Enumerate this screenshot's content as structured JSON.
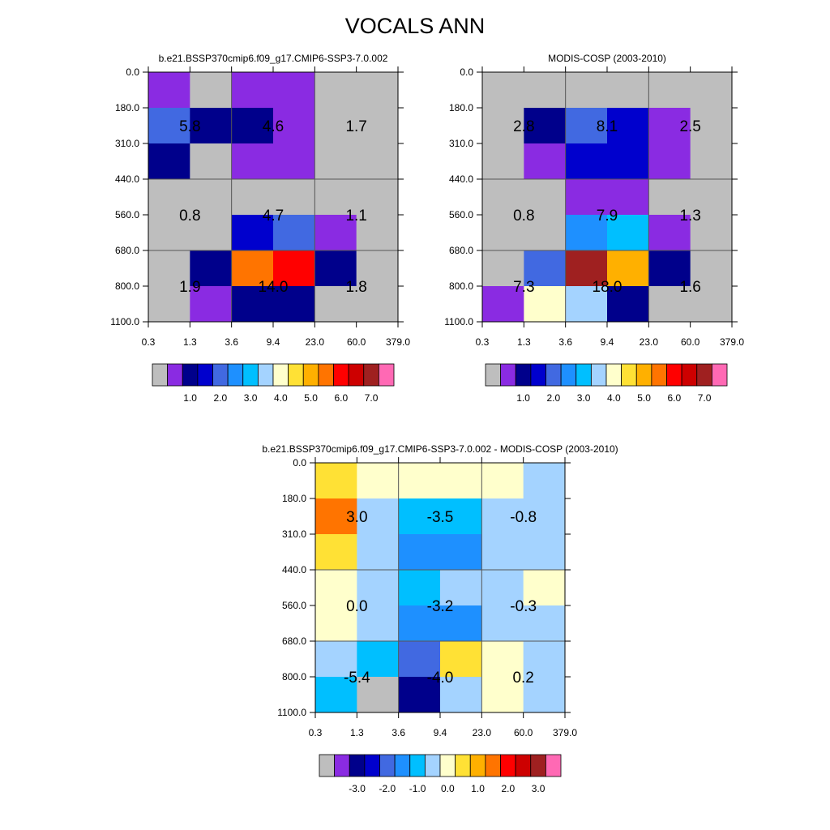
{
  "title": "VOCALS ANN",
  "palette": {
    "main": [
      "#bebebe",
      "#8a2be2",
      "#00008b",
      "#0000cd",
      "#4169e1",
      "#1e90ff",
      "#00bfff",
      "#a4d3ff",
      "#ffffcc",
      "#ffe135",
      "#ffb000",
      "#ff7400",
      "#ff0000",
      "#cd0000",
      "#9f2020",
      "#ff69b4"
    ],
    "diff": [
      "#bebebe",
      "#8a2be2",
      "#00008b",
      "#0000cd",
      "#4169e1",
      "#1e90ff",
      "#00bfff",
      "#a4d3ff",
      "#ffffcc",
      "#ffe135",
      "#ffb000",
      "#ff7400",
      "#ff0000",
      "#cd0000",
      "#9f2020",
      "#ff69b4"
    ]
  },
  "chart_data": [
    {
      "type": "heatmap",
      "title": "b.e21.BSSP370cmip6.f09_g17.CMIP6-SSP3-7.0.002",
      "x_ticks": [
        "0.3",
        "1.3",
        "3.6",
        "9.4",
        "23.0",
        "60.0",
        "379.0"
      ],
      "y_ticks": [
        "0.0",
        "180.0",
        "310.0",
        "440.0",
        "560.0",
        "680.0",
        "800.0",
        "1100.0"
      ],
      "cells": [
        [
          1,
          0,
          1,
          1,
          0,
          0
        ],
        [
          4,
          2,
          2,
          1,
          0,
          0
        ],
        [
          2,
          0,
          1,
          1,
          0,
          0
        ],
        [
          0,
          0,
          0,
          0,
          0,
          0
        ],
        [
          0,
          0,
          3,
          4,
          1,
          0
        ],
        [
          0,
          2,
          11,
          12,
          2,
          0
        ],
        [
          0,
          1,
          2,
          2,
          0,
          0
        ]
      ],
      "box_values": [
        [
          "5.8",
          "4.6",
          "1.7"
        ],
        [
          "0.8",
          "4.7",
          "1.1"
        ],
        [
          "1.9",
          "14.0",
          "1.8"
        ]
      ],
      "colorbar_labels": [
        "1.0",
        "2.0",
        "3.0",
        "4.0",
        "5.0",
        "6.0",
        "7.0"
      ]
    },
    {
      "type": "heatmap",
      "title": "MODIS-COSP (2003-2010)",
      "x_ticks": [
        "0.3",
        "1.3",
        "3.6",
        "9.4",
        "23.0",
        "60.0",
        "379.0"
      ],
      "y_ticks": [
        "0.0",
        "180.0",
        "310.0",
        "440.0",
        "560.0",
        "680.0",
        "800.0",
        "1100.0"
      ],
      "cells": [
        [
          0,
          0,
          0,
          0,
          0,
          0
        ],
        [
          0,
          2,
          4,
          3,
          1,
          0
        ],
        [
          0,
          1,
          3,
          3,
          1,
          0
        ],
        [
          0,
          0,
          1,
          1,
          0,
          0
        ],
        [
          0,
          0,
          5,
          6,
          1,
          0
        ],
        [
          0,
          4,
          14,
          10,
          2,
          0
        ],
        [
          1,
          8,
          7,
          2,
          0,
          0
        ]
      ],
      "box_values": [
        [
          "2.8",
          "8.1",
          "2.5"
        ],
        [
          "0.8",
          "7.9",
          "1.3"
        ],
        [
          "7.3",
          "18.0",
          "1.6"
        ]
      ],
      "colorbar_labels": [
        "1.0",
        "2.0",
        "3.0",
        "4.0",
        "5.0",
        "6.0",
        "7.0"
      ]
    },
    {
      "type": "heatmap",
      "title": "b.e21.BSSP370cmip6.f09_g17.CMIP6-SSP3-7.0.002 - MODIS-COSP (2003-2010)",
      "x_ticks": [
        "0.3",
        "1.3",
        "3.6",
        "9.4",
        "23.0",
        "60.0",
        "379.0"
      ],
      "y_ticks": [
        "0.0",
        "180.0",
        "310.0",
        "440.0",
        "560.0",
        "680.0",
        "800.0",
        "1100.0"
      ],
      "cells": [
        [
          9,
          8,
          8,
          8,
          8,
          7
        ],
        [
          11,
          7,
          6,
          6,
          7,
          7
        ],
        [
          9,
          7,
          5,
          5,
          7,
          7
        ],
        [
          8,
          7,
          6,
          7,
          7,
          8
        ],
        [
          8,
          7,
          5,
          5,
          7,
          7
        ],
        [
          7,
          6,
          4,
          9,
          8,
          7
        ],
        [
          6,
          0,
          2,
          7,
          8,
          7
        ]
      ],
      "box_values": [
        [
          "3.0",
          "-3.5",
          "-0.8"
        ],
        [
          "0.0",
          "-3.2",
          "-0.3"
        ],
        [
          "-5.4",
          "-4.0",
          "0.2"
        ]
      ],
      "colorbar_labels": [
        "-3.0",
        "-2.0",
        "-1.0",
        "0.0",
        "1.0",
        "2.0",
        "3.0"
      ]
    }
  ]
}
